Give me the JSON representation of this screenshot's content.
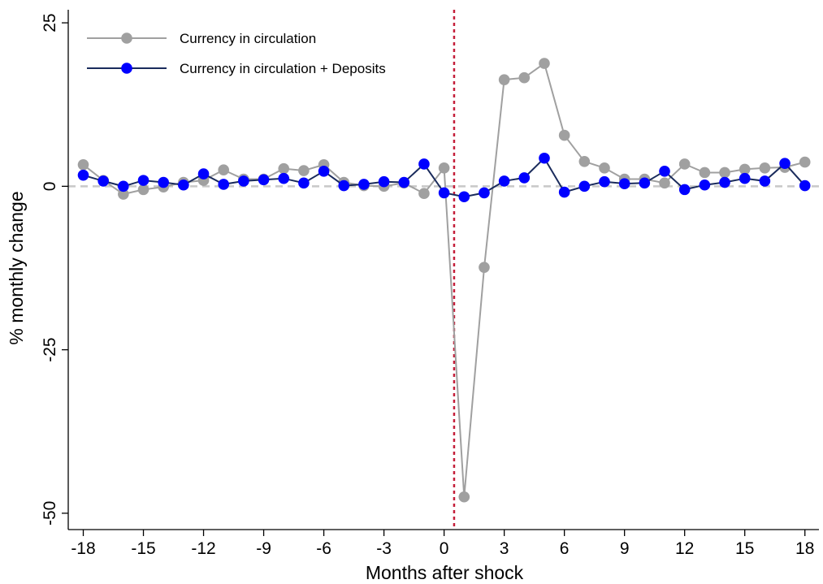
{
  "chart_data": {
    "type": "line",
    "xlabel": "Months after shock",
    "ylabel": "% monthly change",
    "xlim": [
      -18.75,
      18.7
    ],
    "ylim": [
      -52.5,
      27
    ],
    "xticks": [
      -18,
      -15,
      -12,
      -9,
      -6,
      -3,
      0,
      3,
      6,
      9,
      12,
      15,
      18
    ],
    "yticks": [
      25,
      0,
      -25,
      -50
    ],
    "zero_reference_line": {
      "y": 0,
      "style": "dashed",
      "color": "#c8c8c8"
    },
    "shock_line": {
      "x": 0.5,
      "style": "dotted",
      "color": "#c41e3a"
    },
    "legend_position": "top-left",
    "grid": false,
    "x": [
      -18,
      -17,
      -16,
      -15,
      -14,
      -13,
      -12,
      -11,
      -10,
      -9,
      -8,
      -7,
      -6,
      -5,
      -4,
      -3,
      -2,
      -1,
      0,
      1,
      2,
      3,
      4,
      5,
      6,
      7,
      8,
      9,
      10,
      11,
      12,
      13,
      14,
      15,
      16,
      17,
      18
    ],
    "series": [
      {
        "name": "Currency in circulation",
        "color": "#a0a0a0",
        "values": [
          3.3,
          0.9,
          -1.2,
          -0.5,
          -0.1,
          0.6,
          0.9,
          2.5,
          1.1,
          1.1,
          2.7,
          2.4,
          3.3,
          0.6,
          0.1,
          0.0,
          0.5,
          -1.1,
          2.8,
          -47.5,
          -12.4,
          16.3,
          16.6,
          18.8,
          7.8,
          3.8,
          2.8,
          1.1,
          1.1,
          0.5,
          3.4,
          2.1,
          2.1,
          2.6,
          2.8,
          2.9,
          3.7
        ]
      },
      {
        "name": "Currency in circulation + Deposits",
        "color": "#0000ff",
        "line_color": "#1a2b5c",
        "values": [
          1.7,
          0.8,
          0.0,
          0.9,
          0.6,
          0.2,
          1.9,
          0.3,
          0.8,
          1.0,
          1.2,
          0.5,
          2.3,
          0.1,
          0.3,
          0.7,
          0.6,
          3.4,
          -1.0,
          -1.6,
          -1.0,
          0.8,
          1.3,
          4.3,
          -0.9,
          0.0,
          0.7,
          0.4,
          0.5,
          2.3,
          -0.5,
          0.2,
          0.6,
          1.2,
          0.8,
          3.5,
          0.1
        ]
      }
    ]
  }
}
